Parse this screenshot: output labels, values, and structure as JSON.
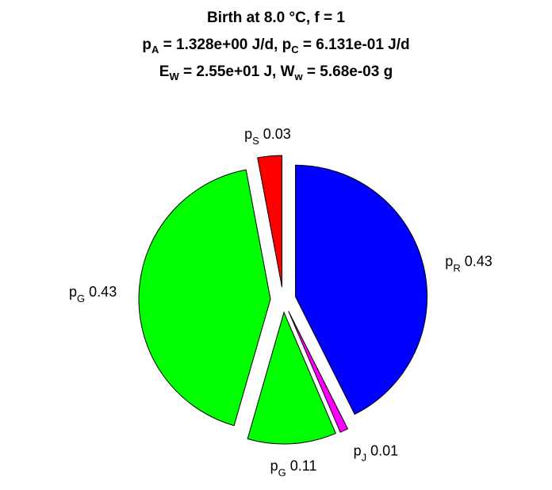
{
  "title": {
    "line1": "Birth at 8.0 °C, f = 1",
    "line2": {
      "a_var": "p",
      "a_sub": "A",
      "a_val": " = 1.328e+00 J/d, ",
      "c_var": "p",
      "c_sub": "C",
      "c_val": " = 6.131e-01 J/d"
    },
    "line3": {
      "e_var": "E",
      "e_sub": "W",
      "e_val": " = 2.55e+01 J, ",
      "w_var": "W",
      "w_sub": "w",
      "w_val": " = 5.68e-03 g"
    }
  },
  "chart_data": {
    "type": "pie",
    "title": "Birth at 8.0 °C, f = 1",
    "slices": [
      {
        "sym": "p",
        "sub": "R",
        "value_label": "0.43",
        "value": 0.43,
        "color": "#0000ff"
      },
      {
        "sym": "p",
        "sub": "J",
        "value_label": "0.01",
        "value": 0.01,
        "color": "#ff00ff"
      },
      {
        "sym": "p",
        "sub": "G",
        "value_label": "0.11",
        "value": 0.11,
        "color": "#00ff00"
      },
      {
        "sym": "p",
        "sub": "G",
        "value_label": "0.43",
        "value": 0.43,
        "color": "#00ff00"
      },
      {
        "sym": "p",
        "sub": "S",
        "value_label": "0.03",
        "value": 0.03,
        "color": "#ff0000"
      }
    ]
  }
}
